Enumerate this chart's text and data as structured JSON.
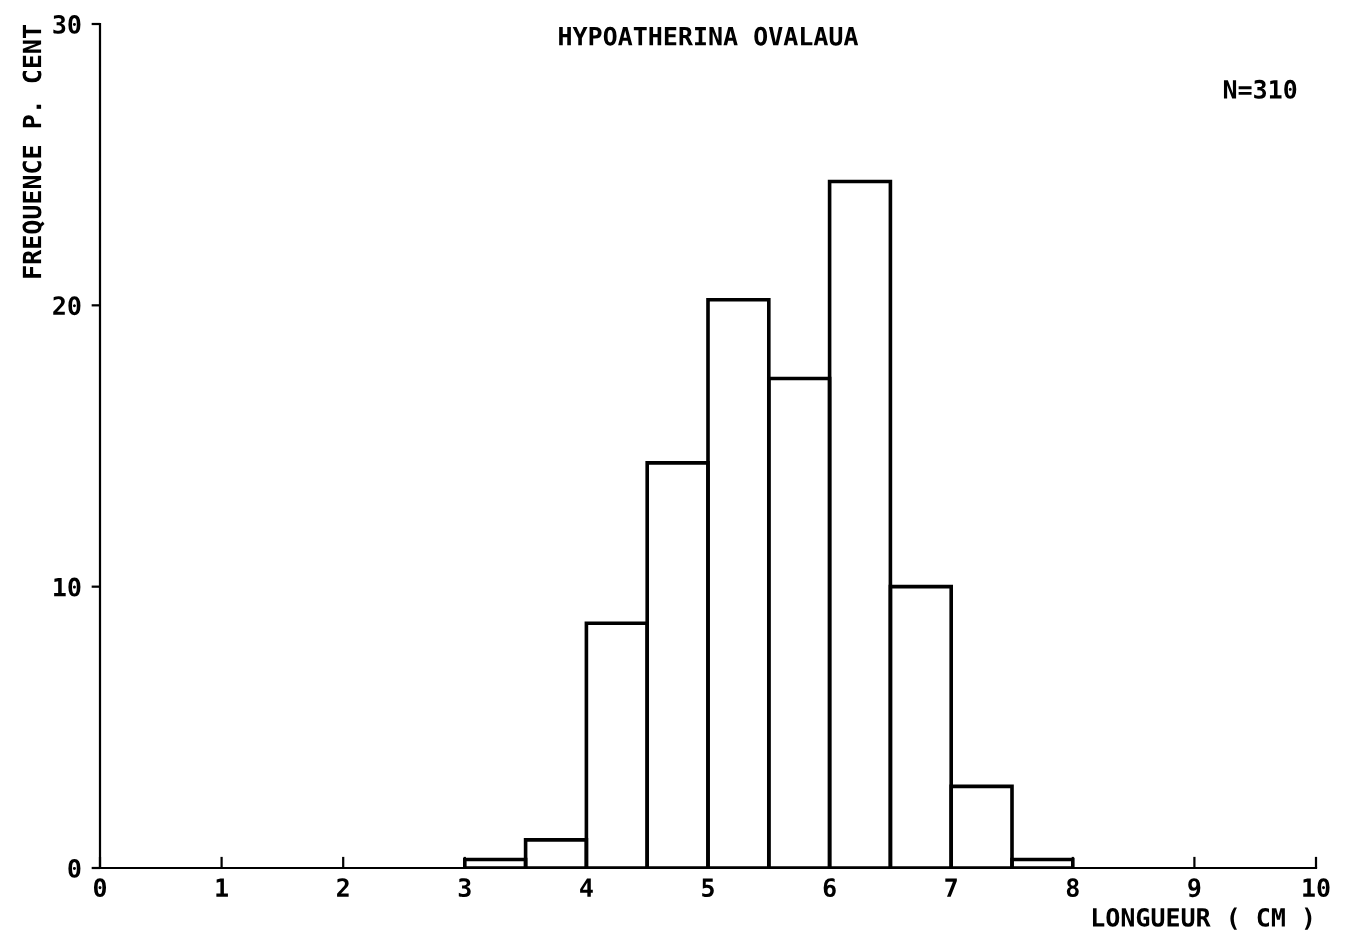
{
  "chart_data": {
    "type": "histogram",
    "title": "HYPOATHERINA OVALAUA",
    "xlabel": "LONGUEUR ( CM )",
    "ylabel": "FREQUENCE P. CENT",
    "annotations": [
      "N=310"
    ],
    "bins": [
      3,
      3.5,
      4,
      4.5,
      5,
      5.5,
      6,
      6.5,
      7,
      7.5,
      8
    ],
    "values": [
      0.3,
      1.0,
      8.7,
      14.4,
      20.2,
      17.4,
      24.4,
      10.0,
      2.9,
      0.3
    ],
    "color": "#000000",
    "xlim": [
      0,
      10
    ],
    "xticks": [
      0,
      1,
      2,
      3,
      4,
      5,
      6,
      7,
      8,
      9,
      10
    ],
    "ylim": [
      0,
      30
    ],
    "yticks": [
      0,
      10,
      20,
      30
    ],
    "grid": false,
    "legend": false
  }
}
